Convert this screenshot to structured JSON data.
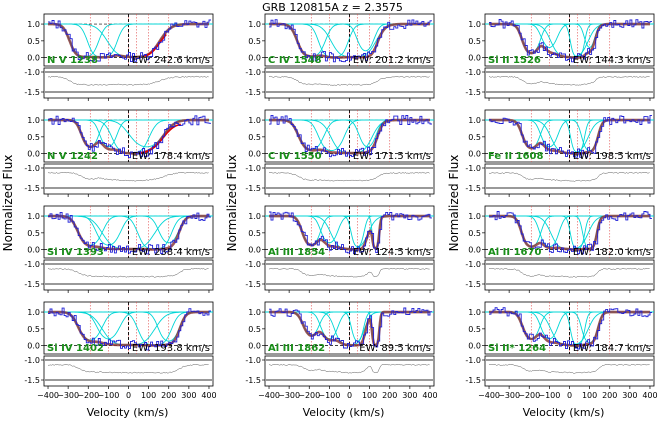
{
  "figure": {
    "title": "GRB 120815A  z = 2.3575",
    "ylabel": "Normalized Flux",
    "xlabel": "Velocity (km/s)",
    "colors": {
      "data": "#1f1fd6",
      "model": "#8b3a3a",
      "component": "#00d6d6",
      "fit": "#e00000",
      "error": "#555555",
      "label": "#1a8f1a",
      "comp_marker": "#e05050",
      "gridline": "#000000"
    }
  },
  "chart_data": {
    "type": "line",
    "xlim": [
      -420,
      420
    ],
    "x_ticks": [
      -400,
      -300,
      -200,
      -100,
      0,
      100,
      200,
      300,
      400
    ],
    "flux_ylim": [
      -0.25,
      1.3
    ],
    "flux_ticks": [
      "0.0",
      "0.5",
      "1.0"
    ],
    "err_ylim": [
      -1.65,
      -0.9
    ],
    "err_ticks": [
      "-1.0",
      "-1.5"
    ],
    "component_velocities": [
      -190,
      -100,
      0,
      40,
      100,
      200
    ],
    "panels": [
      {
        "col": 0,
        "row": 0,
        "ion": "N V 1238",
        "ew": "EW: 242.6 km/s",
        "absorbers": [
          [
            -220,
            40,
            0.9
          ],
          [
            -130,
            40,
            1.0
          ],
          [
            25,
            70,
            1.0
          ]
        ],
        "fit_range": [
          80,
          190
        ]
      },
      {
        "col": 0,
        "row": 1,
        "ion": "N V 1242",
        "ew": "EW: 178.4 km/s",
        "absorbers": [
          [
            -190,
            30,
            0.4
          ],
          [
            -100,
            30,
            0.4
          ],
          [
            10,
            50,
            1.0
          ],
          [
            90,
            60,
            0.4
          ]
        ],
        "fit_range": [
          60,
          260
        ]
      },
      {
        "col": 0,
        "row": 2,
        "ion": "Si IV 1393",
        "ew": "EW: 238.4 km/s",
        "absorbers": [
          [
            -190,
            40,
            0.5
          ],
          [
            -100,
            40,
            0.5
          ],
          [
            0,
            70,
            1.0
          ],
          [
            130,
            45,
            1.0
          ],
          [
            200,
            35,
            0.4
          ]
        ],
        "fit_range": null
      },
      {
        "col": 0,
        "row": 3,
        "ion": "Si IV 1402",
        "ew": "EW: 193.8 km/s",
        "absorbers": [
          [
            -190,
            40,
            0.45
          ],
          [
            -100,
            40,
            0.4
          ],
          [
            0,
            70,
            1.0
          ],
          [
            130,
            45,
            1.0
          ],
          [
            200,
            35,
            0.5
          ]
        ],
        "fit_range": null
      },
      {
        "col": 1,
        "row": 0,
        "ion": "C IV 1548",
        "ew": "EW: 201.2 km/s",
        "absorbers": [
          [
            -190,
            40,
            0.8
          ],
          [
            -80,
            40,
            1.0
          ],
          [
            20,
            60,
            1.0
          ],
          [
            80,
            30,
            0.4
          ]
        ],
        "fit_range": null
      },
      {
        "col": 1,
        "row": 1,
        "ion": "C IV 1550",
        "ew": "EW: 171.5 km/s",
        "absorbers": [
          [
            -190,
            40,
            0.55
          ],
          [
            -90,
            40,
            0.6
          ],
          [
            10,
            55,
            1.0
          ],
          [
            90,
            30,
            0.4
          ]
        ],
        "fit_range": null
      },
      {
        "col": 1,
        "row": 2,
        "ion": "Al III 1854",
        "ew": "EW: 124.5 km/s",
        "absorbers": [
          [
            -190,
            30,
            0.5
          ],
          [
            -100,
            30,
            0.4
          ],
          [
            0,
            50,
            1.0
          ],
          [
            40,
            20,
            0.6
          ],
          [
            130,
            10,
            0.8
          ]
        ],
        "fit_range": null
      },
      {
        "col": 1,
        "row": 3,
        "ion": "Al III 1862",
        "ew": "EW: 89.5 km/s",
        "absorbers": [
          [
            -190,
            30,
            0.3
          ],
          [
            -100,
            30,
            0.4
          ],
          [
            0,
            40,
            1.0
          ],
          [
            40,
            20,
            0.5
          ],
          [
            130,
            10,
            1.0
          ]
        ],
        "fit_range": null
      },
      {
        "col": 2,
        "row": 0,
        "ion": "Si II 1526",
        "ew": "EW: 144.3 km/s",
        "absorbers": [
          [
            -190,
            30,
            0.5
          ],
          [
            -100,
            30,
            0.3
          ],
          [
            0,
            50,
            1.0
          ],
          [
            40,
            20,
            0.9
          ],
          [
            100,
            20,
            0.3
          ]
        ],
        "fit_range": null
      },
      {
        "col": 2,
        "row": 1,
        "ion": "Fe II 1608",
        "ew": "EW: 198.5 km/s",
        "absorbers": [
          [
            -190,
            30,
            0.45
          ],
          [
            -100,
            30,
            0.4
          ],
          [
            0,
            50,
            1.0
          ],
          [
            40,
            20,
            0.8
          ],
          [
            100,
            25,
            0.6
          ]
        ],
        "fit_range": null
      },
      {
        "col": 2,
        "row": 2,
        "ion": "Al II 1670",
        "ew": "EW: 182.0 km/s",
        "absorbers": [
          [
            -190,
            30,
            0.6
          ],
          [
            -100,
            30,
            0.6
          ],
          [
            0,
            50,
            1.0
          ],
          [
            40,
            20,
            0.9
          ],
          [
            100,
            20,
            0.8
          ]
        ],
        "fit_range": null
      },
      {
        "col": 2,
        "row": 3,
        "ion": "Si II* 1264",
        "ew": "EW: 184.7 km/s",
        "absorbers": [
          [
            -190,
            30,
            0.4
          ],
          [
            -100,
            30,
            0.4
          ],
          [
            0,
            50,
            1.0
          ],
          [
            40,
            20,
            0.9
          ],
          [
            100,
            25,
            0.6
          ]
        ],
        "fit_range": null
      }
    ]
  }
}
